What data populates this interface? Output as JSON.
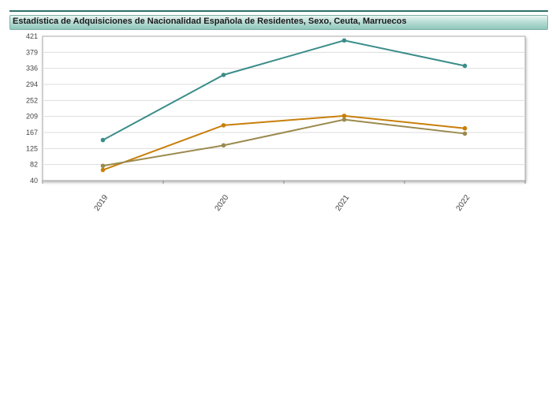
{
  "header": {
    "title": "Estadística de Adquisiciones de Nacionalidad Española de Residentes, Sexo, Ceuta, Marruecos"
  },
  "chart_data": {
    "type": "line",
    "title": "Estadística de Adquisiciones de Nacionalidad Española de Residentes, Sexo, Ceuta, Marruecos",
    "xlabel": "",
    "ylabel": "",
    "categories": [
      "2019",
      "2020",
      "2021",
      "2022"
    ],
    "yticks": [
      "421",
      "379",
      "336",
      "294",
      "252",
      "209",
      "167",
      "125",
      "82",
      "40"
    ],
    "ylim": [
      40,
      421
    ],
    "grid": true,
    "legend": "none",
    "series": [
      {
        "color": "#3a8d89",
        "values": [
          147,
          319,
          410,
          343
        ]
      },
      {
        "color": "#c87f0a",
        "values": [
          68,
          186,
          211,
          178
        ]
      },
      {
        "color": "#9b8a4e",
        "values": [
          79,
          133,
          201,
          164
        ]
      }
    ]
  }
}
